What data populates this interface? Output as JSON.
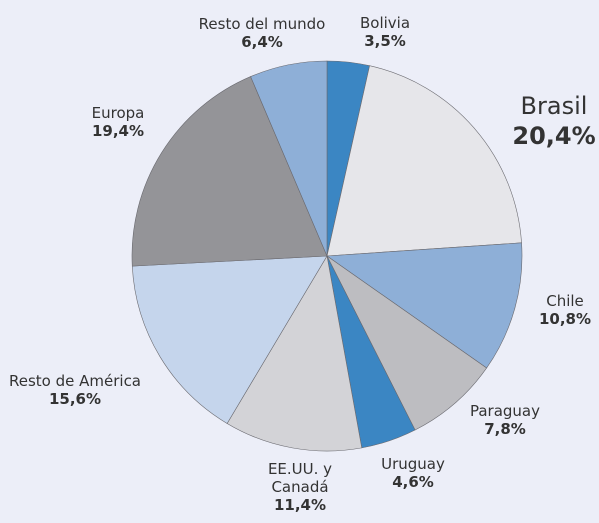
{
  "chart_data": {
    "type": "pie",
    "categories": [
      "Bolivia",
      "Brasil",
      "Chile",
      "Paraguay",
      "Uruguay",
      "EE.UU. y Canadá",
      "Resto de América",
      "Europa",
      "Resto del mundo"
    ],
    "values": [
      3.5,
      20.4,
      10.8,
      7.8,
      4.6,
      11.4,
      15.6,
      19.4,
      6.4
    ],
    "value_labels": [
      "3,5%",
      "20,4%",
      "10,8%",
      "7,8%",
      "4,6%",
      "11,4%",
      "15,6%",
      "19,4%",
      "6,4%"
    ],
    "colors": [
      "#3b86c3",
      "#e6e6ea",
      "#8eafd7",
      "#bdbdc1",
      "#3b86c3",
      "#d3d3d7",
      "#c5d5ec",
      "#949498",
      "#8eafd7"
    ]
  }
}
